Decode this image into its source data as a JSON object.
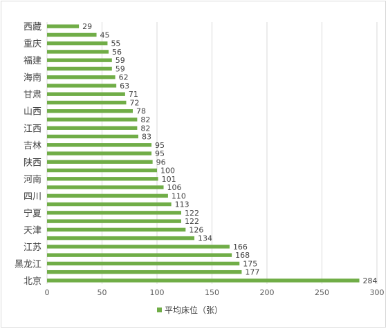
{
  "chart_data": {
    "type": "bar",
    "orientation": "horizontal",
    "categories": [
      "西藏",
      "",
      "重庆",
      "",
      "福建",
      "",
      "海南",
      "",
      "甘肃",
      "",
      "山西",
      "",
      "江西",
      "",
      "吉林",
      "",
      "陕西",
      "",
      "河南",
      "",
      "四川",
      "",
      "宁夏",
      "",
      "天津",
      "",
      "江苏",
      "",
      "黑龙江",
      "",
      "北京"
    ],
    "series": [
      {
        "name": "平均床位（张）",
        "color": "#70ad47",
        "values": [
          29,
          45,
          55,
          56,
          59,
          59,
          62,
          63,
          71,
          72,
          78,
          82,
          82,
          83,
          95,
          95,
          96,
          100,
          101,
          106,
          110,
          113,
          122,
          122,
          126,
          134,
          166,
          168,
          175,
          177,
          284
        ]
      }
    ],
    "xlim": [
      0,
      300
    ],
    "xticks": [
      0,
      50,
      100,
      150,
      200,
      250,
      300
    ],
    "grid": true,
    "data_labels": true,
    "legend_position": "bottom"
  }
}
